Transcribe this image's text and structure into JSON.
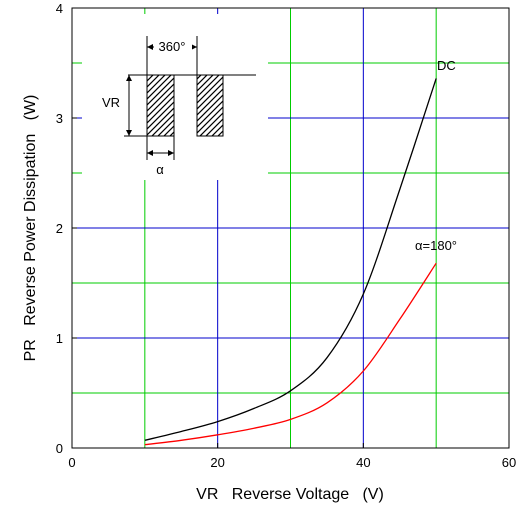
{
  "chart_data": {
    "type": "line",
    "title": "",
    "xlabel": "VR   Reverse Voltage   (V)",
    "ylabel": "PR   Reverse Power Dissipation   (W)",
    "xlim": [
      0,
      60
    ],
    "ylim": [
      0,
      4
    ],
    "x_ticks": [
      "0",
      "20",
      "40",
      "60"
    ],
    "y_ticks": [
      "0",
      "1",
      "2",
      "3",
      "4"
    ],
    "grid": {
      "major": "blue",
      "minor": "green",
      "major_x": [
        20,
        40
      ],
      "minor_x": [
        10,
        30,
        50
      ],
      "major_y": [
        1,
        2,
        3
      ],
      "minor_y": [
        0.5,
        1.5,
        2.5,
        3.5
      ]
    },
    "series": [
      {
        "name": "DC",
        "color": "#000000",
        "x": [
          10,
          15,
          20,
          25,
          30,
          35,
          40,
          45,
          50
        ],
        "y": [
          0.07,
          0.15,
          0.24,
          0.36,
          0.52,
          0.82,
          1.4,
          2.35,
          3.36
        ]
      },
      {
        "name": "α=180°",
        "color": "#ff0000",
        "x": [
          10,
          15,
          20,
          25,
          30,
          35,
          40,
          45,
          50
        ],
        "y": [
          0.03,
          0.07,
          0.12,
          0.18,
          0.26,
          0.41,
          0.7,
          1.17,
          1.68
        ]
      }
    ],
    "inset": {
      "period_label": "360°",
      "height_label": "VR",
      "width_label": "α"
    }
  }
}
